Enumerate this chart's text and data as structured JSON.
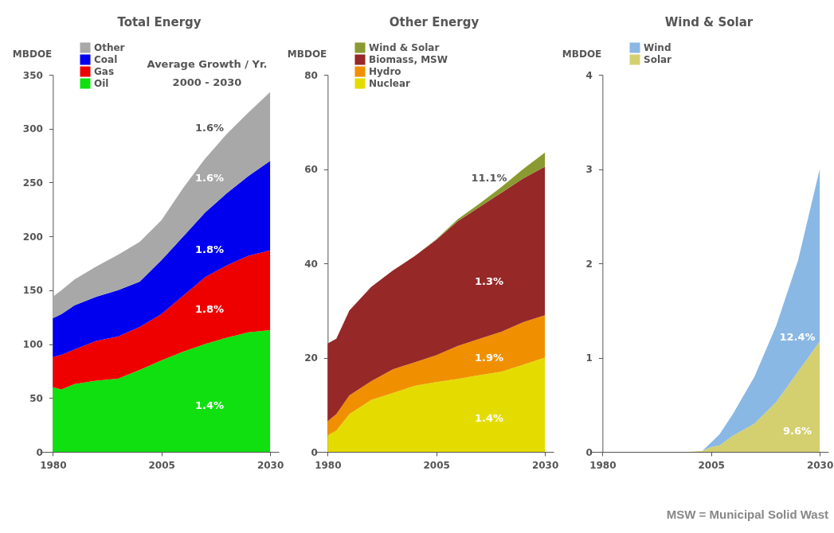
{
  "chart_data": [
    {
      "type": "area",
      "stacked": true,
      "title": "Total Energy",
      "ylabel": "MBDOE",
      "legend": "top left",
      "x": [
        1980,
        1982,
        1985,
        1990,
        1995,
        2000,
        2005,
        2010,
        2015,
        2020,
        2025,
        2030
      ],
      "xlim": [
        1977,
        2032
      ],
      "xticks": [
        1980,
        2005,
        2030
      ],
      "ylim": [
        0,
        350
      ],
      "yticks": [
        0,
        50,
        100,
        150,
        200,
        250,
        300,
        350
      ],
      "series": [
        {
          "name": "Oil",
          "color": "#10e010",
          "values": [
            60,
            58,
            63,
            66,
            68,
            76,
            85,
            93,
            100,
            106,
            111,
            113
          ]
        },
        {
          "name": "Gas",
          "color": "#ee0000",
          "values": [
            28,
            32,
            32,
            37,
            39,
            40,
            43,
            52,
            62,
            67,
            71,
            74
          ]
        },
        {
          "name": "Coal",
          "color": "#0000ee",
          "values": [
            36,
            38,
            41,
            41,
            43,
            42,
            50,
            55,
            60,
            67,
            74,
            83
          ]
        },
        {
          "name": "Other",
          "color": "#a8a8a8",
          "values": [
            20,
            22,
            24,
            28,
            33,
            37,
            37,
            45,
            50,
            55,
            59,
            64
          ]
        }
      ],
      "annotations": [
        "Average Growth / Yr.",
        "2000 - 2030",
        "1.6%",
        "1.6%",
        "1.8%",
        "1.8%",
        "1.4%"
      ]
    },
    {
      "type": "area",
      "stacked": true,
      "title": "Other Energy",
      "ylabel": "MBDOE",
      "legend": "top left",
      "x": [
        1980,
        1982,
        1985,
        1990,
        1995,
        2000,
        2005,
        2010,
        2015,
        2020,
        2025,
        2030
      ],
      "xlim": [
        1977,
        2032
      ],
      "xticks": [
        1980,
        2005,
        2030
      ],
      "ylim": [
        0,
        80
      ],
      "yticks": [
        0,
        20,
        40,
        60,
        80
      ],
      "series": [
        {
          "name": "Nuclear",
          "color": "#e4dc00",
          "values": [
            3.5,
            4.5,
            8,
            11,
            12.5,
            14,
            14.8,
            15.5,
            16.3,
            17,
            18.5,
            20
          ]
        },
        {
          "name": "Hydro",
          "color": "#f09000",
          "values": [
            3,
            3.5,
            4,
            4,
            5,
            5,
            5.7,
            7,
            7.7,
            8.5,
            9,
            9
          ]
        },
        {
          "name": "Biomass, MSW",
          "color": "#962828",
          "values": [
            16.5,
            16,
            18,
            20,
            21,
            22.5,
            24.5,
            26.5,
            28,
            29.5,
            30.5,
            31.5
          ]
        },
        {
          "name": "Wind & Solar",
          "color": "#8a9a30",
          "values": [
            0,
            0,
            0,
            0,
            0,
            0,
            0.1,
            0.4,
            0.7,
            1.2,
            2,
            3
          ]
        }
      ],
      "annotations": [
        "11.1%",
        "1.3%",
        "1.9%",
        "1.4%"
      ]
    },
    {
      "type": "area",
      "stacked": true,
      "title": "Wind & Solar",
      "ylabel": "MBDOE",
      "legend": "top left",
      "x": [
        1980,
        1985,
        1990,
        1995,
        2000,
        2003,
        2005,
        2007,
        2010,
        2015,
        2020,
        2025,
        2030
      ],
      "xlim": [
        1977,
        2032
      ],
      "xticks": [
        1980,
        2005,
        2030
      ],
      "ylim": [
        0,
        4
      ],
      "yticks": [
        0,
        1,
        2,
        3,
        4
      ],
      "series": [
        {
          "name": "Solar",
          "color": "#d4d070",
          "values": [
            0,
            0,
            0,
            0,
            0,
            0.01,
            0.05,
            0.07,
            0.17,
            0.3,
            0.53,
            0.85,
            1.17
          ]
        },
        {
          "name": "Wind",
          "color": "#8ab8e4",
          "values": [
            0,
            0,
            0,
            0,
            0,
            0,
            0.05,
            0.12,
            0.23,
            0.5,
            0.81,
            1.18,
            1.83
          ]
        }
      ],
      "annotations": [
        "12.4%",
        "9.6%",
        "MSW = Municipal Solid Wast"
      ]
    }
  ]
}
